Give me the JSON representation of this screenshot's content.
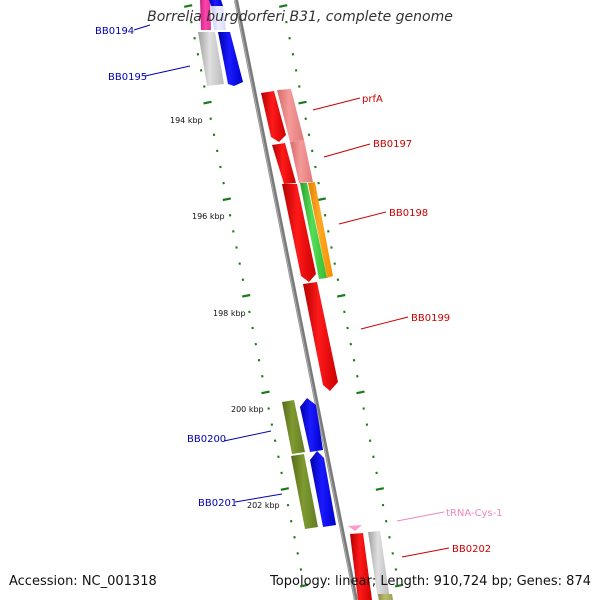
{
  "title": "Borrelia burgdorferi B31, complete genome",
  "footer": {
    "accession": "Accession: NC_001318",
    "summary": "Topology: linear; Length: 910,724 bp; Genes: 874"
  },
  "ticks": [
    "194 kbp",
    "196 kbp",
    "198 kbp",
    "200 kbp",
    "202 kbp"
  ],
  "genes": [
    {
      "label": "BB0194",
      "color": "#0000b3"
    },
    {
      "label": "BB0195",
      "color": "#0000b3"
    },
    {
      "label": "prfA",
      "color": "#cc0000"
    },
    {
      "label": "BB0197",
      "color": "#cc0000"
    },
    {
      "label": "BB0198",
      "color": "#cc0000"
    },
    {
      "label": "BB0199",
      "color": "#cc0000"
    },
    {
      "label": "BB0200",
      "color": "#0000b3"
    },
    {
      "label": "BB0201",
      "color": "#0000b3"
    },
    {
      "label": "tRNA-Cys-1",
      "color": "#ee88bb"
    },
    {
      "label": "BB0202",
      "color": "#cc0000"
    }
  ],
  "colors": {
    "backbone": "#888888",
    "tick": "#1a7a1a",
    "cds_forward": "#ff0000",
    "cds_reverse": "#0000ff",
    "cog_pink": "#f08080",
    "cog_green": "#44cc44",
    "cog_orange": "#ff9900",
    "cog_olive": "#6b8e23",
    "cog_gray": "#c0c0c0",
    "trna": "#ff99cc"
  }
}
